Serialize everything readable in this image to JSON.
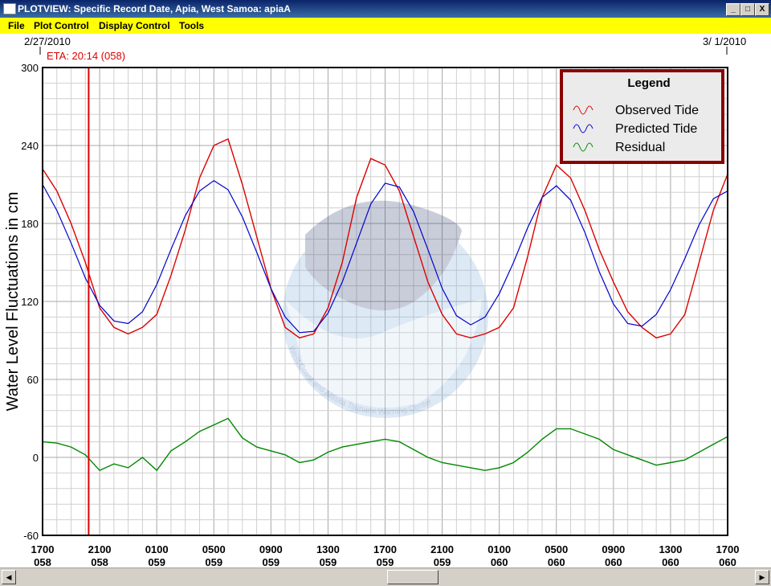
{
  "window": {
    "title": "PLOTVIEW: Specific Record Date, Apia, West Samoa: apiaA",
    "minimize": "_",
    "maximize": "□",
    "close": "X"
  },
  "menu": {
    "items": [
      {
        "label": "File"
      },
      {
        "label": "Plot Control"
      },
      {
        "label": "Display Control"
      },
      {
        "label": "Tools"
      }
    ]
  },
  "header": {
    "start_date": "2/27/2010",
    "end_date": "3/ 1/2010",
    "eta": "ETA: 20:14 (058)"
  },
  "legend": {
    "title": "Legend",
    "entries": [
      "Observed Tide",
      "Predicted Tide",
      "Residual"
    ]
  },
  "watermark": {
    "text": "West Coast and Alaska Tsunami Warning Center"
  },
  "colors": {
    "observed": "#dd0000",
    "predicted": "#0000cc",
    "residual": "#008800",
    "eta_marker": "#dd0000",
    "legend_border": "#8b0000"
  },
  "chart_data": {
    "type": "line",
    "ylabel": "Water Level Fluctuations in cm",
    "xlabel": "",
    "ylim": [
      -60,
      300
    ],
    "y_ticks": [
      -60,
      0,
      60,
      120,
      180,
      240,
      300
    ],
    "x_range_hours": [
      0,
      48
    ],
    "grid": true,
    "legend_position": "top-right",
    "x_ticks": [
      {
        "hour": 0,
        "time": "1700",
        "day": "058"
      },
      {
        "hour": 4,
        "time": "2100",
        "day": "058"
      },
      {
        "hour": 8,
        "time": "0100",
        "day": "059"
      },
      {
        "hour": 12,
        "time": "0500",
        "day": "059"
      },
      {
        "hour": 16,
        "time": "0900",
        "day": "059"
      },
      {
        "hour": 20,
        "time": "1300",
        "day": "059"
      },
      {
        "hour": 24,
        "time": "1700",
        "day": "059"
      },
      {
        "hour": 28,
        "time": "2100",
        "day": "059"
      },
      {
        "hour": 32,
        "time": "0100",
        "day": "060"
      },
      {
        "hour": 36,
        "time": "0500",
        "day": "060"
      },
      {
        "hour": 40,
        "time": "0900",
        "day": "060"
      },
      {
        "hour": 44,
        "time": "1300",
        "day": "060"
      },
      {
        "hour": 48,
        "time": "1700",
        "day": "060"
      }
    ],
    "eta_hour": 3.23,
    "series": [
      {
        "name": "Observed Tide",
        "x": [
          0,
          1,
          2,
          3,
          4,
          5,
          6,
          7,
          8,
          9,
          10,
          11,
          12,
          13,
          14,
          15,
          16,
          17,
          18,
          19,
          20,
          21,
          22,
          23,
          24,
          25,
          26,
          27,
          28,
          29,
          30,
          31,
          32,
          33,
          34,
          35,
          36,
          37,
          38,
          39,
          40,
          41,
          42,
          43,
          44,
          45,
          46,
          47,
          48
        ],
        "y": [
          222,
          205,
          180,
          150,
          115,
          100,
          95,
          100,
          110,
          140,
          175,
          215,
          240,
          245,
          210,
          170,
          130,
          100,
          92,
          95,
          115,
          150,
          200,
          230,
          225,
          205,
          170,
          135,
          110,
          95,
          92,
          95,
          100,
          115,
          155,
          200,
          225,
          215,
          190,
          160,
          135,
          112,
          100,
          92,
          95,
          110,
          150,
          190,
          218
        ]
      },
      {
        "name": "Predicted Tide",
        "x": [
          0,
          1,
          2,
          3,
          4,
          5,
          6,
          7,
          8,
          9,
          10,
          11,
          12,
          13,
          14,
          15,
          16,
          17,
          18,
          19,
          20,
          21,
          22,
          23,
          24,
          25,
          26,
          27,
          28,
          29,
          30,
          31,
          32,
          33,
          34,
          35,
          36,
          37,
          38,
          39,
          40,
          41,
          42,
          43,
          44,
          45,
          46,
          47,
          48
        ],
        "y": [
          210,
          190,
          165,
          138,
          117,
          105,
          103,
          112,
          133,
          160,
          186,
          205,
          213,
          206,
          185,
          158,
          130,
          108,
          96,
          97,
          111,
          135,
          165,
          195,
          211,
          208,
          189,
          160,
          130,
          109,
          102,
          108,
          126,
          150,
          177,
          200,
          209,
          198,
          173,
          143,
          118,
          103,
          101,
          110,
          129,
          153,
          179,
          199,
          205
        ]
      },
      {
        "name": "Residual",
        "x": [
          0,
          1,
          2,
          3,
          4,
          5,
          6,
          7,
          8,
          9,
          10,
          11,
          12,
          13,
          14,
          15,
          16,
          17,
          18,
          19,
          20,
          21,
          22,
          23,
          24,
          25,
          26,
          27,
          28,
          29,
          30,
          31,
          32,
          33,
          34,
          35,
          36,
          37,
          38,
          39,
          40,
          41,
          42,
          43,
          44,
          45,
          46,
          47,
          48
        ],
        "y": [
          12,
          11,
          8,
          2,
          -10,
          -5,
          -8,
          0,
          -10,
          5,
          12,
          20,
          25,
          30,
          15,
          8,
          5,
          2,
          -4,
          -2,
          4,
          8,
          10,
          12,
          14,
          12,
          6,
          0,
          -4,
          -6,
          -8,
          -10,
          -8,
          -4,
          4,
          14,
          22,
          22,
          18,
          14,
          6,
          2,
          -2,
          -6,
          -4,
          -2,
          4,
          10,
          16
        ]
      }
    ]
  }
}
